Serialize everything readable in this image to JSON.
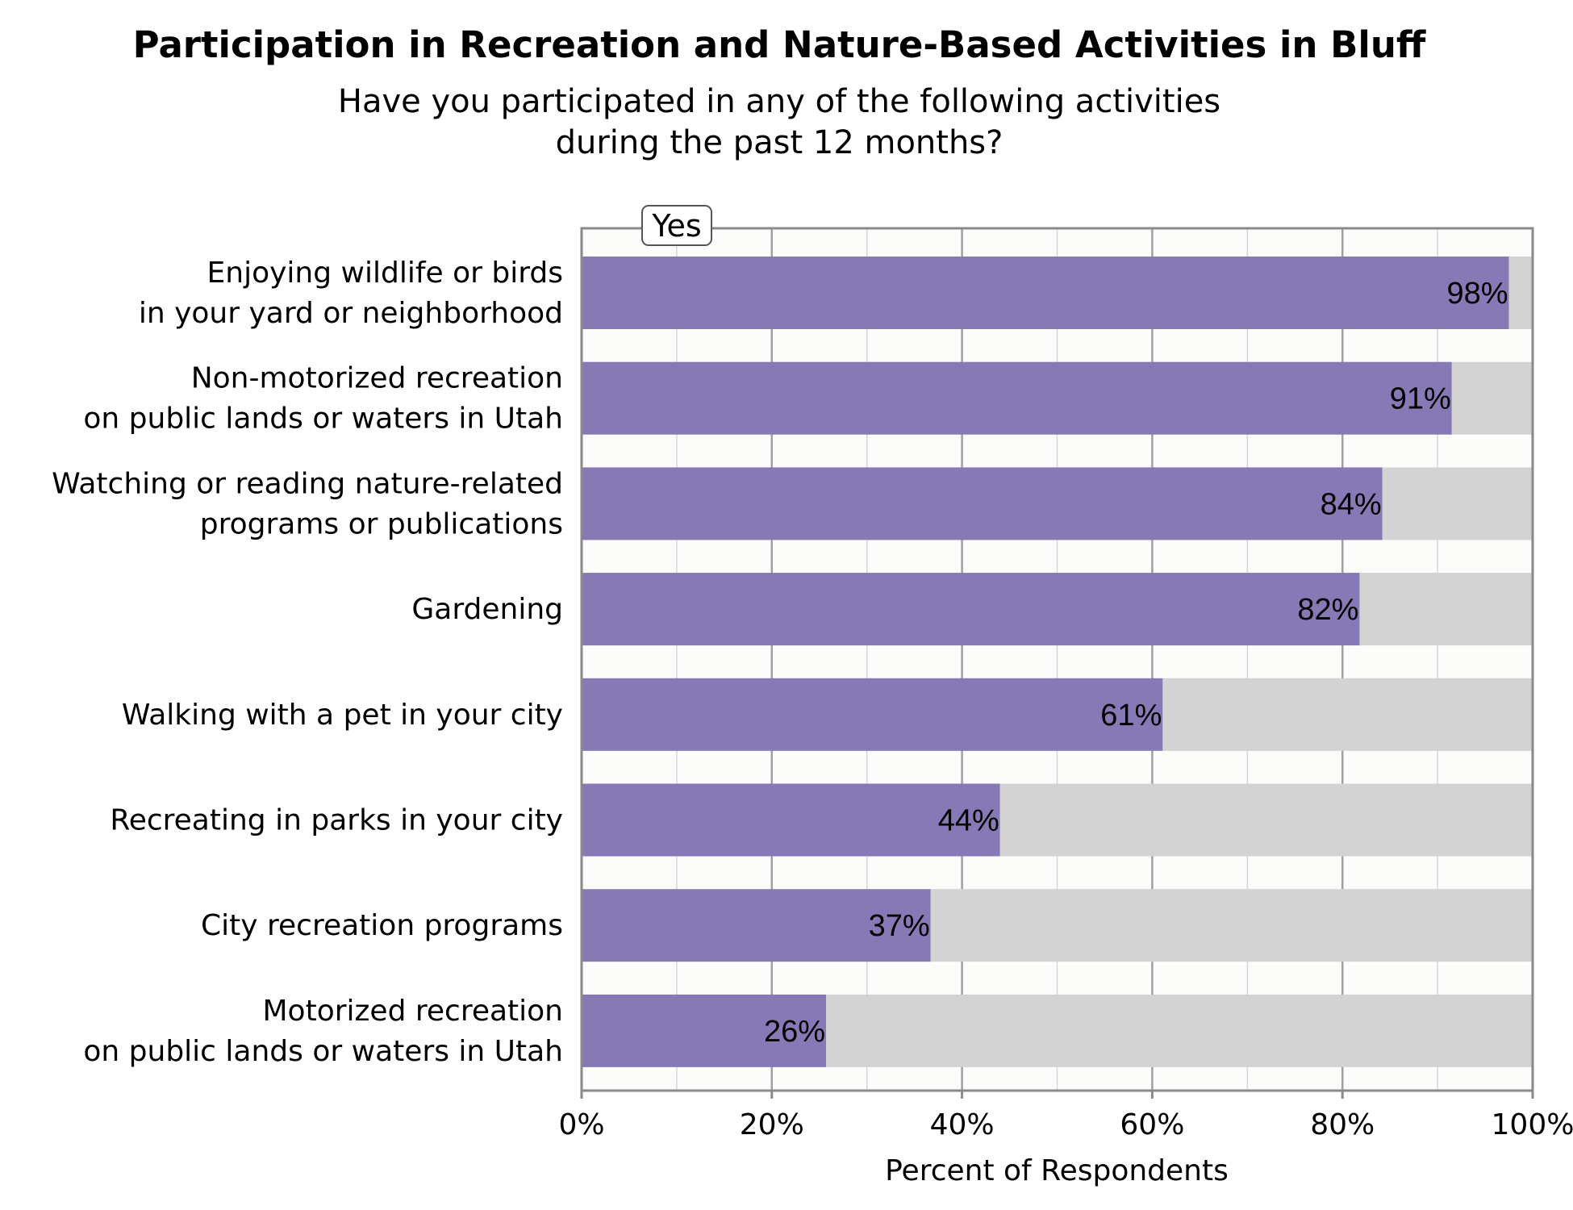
{
  "chart_data": {
    "type": "bar",
    "orientation": "horizontal",
    "stacked": true,
    "title": "Participation in Recreation and Nature-Based Activities in Bluff",
    "subtitle_lines": [
      "Have you participated in any of the following activities",
      "during the past 12 months?"
    ],
    "xlabel": "Percent of Respondents",
    "xlim": [
      0,
      100
    ],
    "x_ticks": [
      0,
      20,
      40,
      60,
      80,
      100
    ],
    "x_tick_labels": [
      "0%",
      "20%",
      "40%",
      "60%",
      "80%",
      "100%"
    ],
    "grid": true,
    "legend": {
      "placement": "top-left",
      "entries": [
        "Yes"
      ]
    },
    "categories": [
      [
        "Enjoying wildlife or birds",
        "in your yard or neighborhood"
      ],
      [
        "Non-motorized recreation",
        "on public lands or waters in Utah"
      ],
      [
        "Watching or reading nature-related",
        "programs or publications"
      ],
      [
        "Gardening"
      ],
      [
        "Walking with a pet in your city"
      ],
      [
        "Recreating in parks in your city"
      ],
      [
        "City recreation programs"
      ],
      [
        "Motorized recreation",
        "on public lands or waters in Utah"
      ]
    ],
    "series": [
      {
        "name": "Yes",
        "color": "#8779b5",
        "values": [
          97.5,
          91.5,
          84.2,
          81.8,
          61.1,
          44.0,
          36.7,
          25.7
        ],
        "data_labels": [
          "98%",
          "91%",
          "84%",
          "82%",
          "61%",
          "44%",
          "37%",
          "26%"
        ]
      },
      {
        "color": "#d3d3d3",
        "values": [
          2.5,
          8.5,
          15.8,
          18.2,
          38.9,
          56.0,
          63.3,
          74.3
        ]
      }
    ]
  }
}
